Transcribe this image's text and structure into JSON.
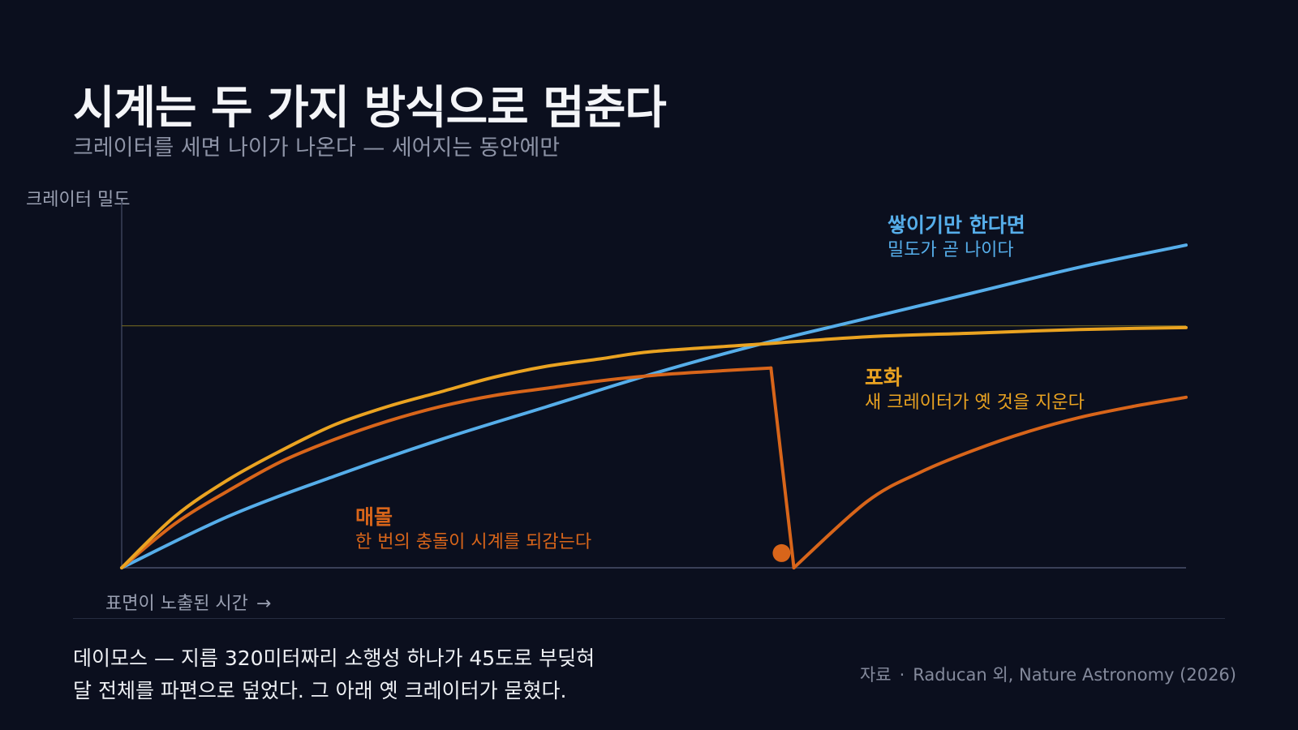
{
  "header": {
    "title": "시계는 두 가지 방식으로 멈춘다",
    "subtitle": "크레이터를 세면 나이가 나온다 — 세어지는 동안에만"
  },
  "chart_data": {
    "type": "line",
    "ylabel": "크레이터 밀도",
    "xlabel": "표면이 노출된 시간",
    "xlabel_arrow": "→",
    "xlim": [
      0,
      100
    ],
    "ylim": [
      0,
      100
    ],
    "saturation_level": 66,
    "series": [
      {
        "key": "accumulate",
        "color": "#56aeea",
        "x": [
          0,
          10,
          20,
          30,
          40,
          50,
          60,
          70,
          80,
          90,
          100
        ],
        "y": [
          0,
          14,
          25,
          35,
          44,
          53,
          61,
          68,
          75,
          82,
          88
        ]
      },
      {
        "key": "saturation",
        "color": "#eaa321",
        "x": [
          0,
          5,
          10,
          15,
          20,
          25,
          30,
          35,
          40,
          45,
          50,
          60,
          70,
          80,
          90,
          100
        ],
        "y": [
          0,
          14,
          24,
          32,
          39,
          44,
          48,
          52,
          55,
          57,
          59,
          61,
          63,
          64,
          65,
          65.5
        ]
      },
      {
        "key": "burial",
        "color": "#d8651a",
        "x": [
          0,
          5,
          10,
          15,
          20,
          25,
          30,
          35,
          40,
          45,
          50,
          55,
          61,
          63,
          70,
          75,
          80,
          85,
          90,
          95,
          100
        ],
        "y": [
          0,
          12,
          21,
          29,
          35,
          40,
          44,
          47,
          49,
          51,
          52.5,
          53.5,
          54.5,
          4,
          18,
          26,
          32,
          37,
          41,
          44,
          46.5
        ]
      }
    ],
    "reset_point": {
      "x": 62,
      "y": 4
    },
    "annotations": {
      "accumulate": {
        "title": "쌓이기만 한다면",
        "text": "밀도가 곧 나이다"
      },
      "saturation": {
        "title": "포화",
        "text": "새 크레이터가 옛 것을 지운다"
      },
      "burial": {
        "title": "매몰",
        "text": "한 번의 충돌이 시계를 되감는다"
      }
    }
  },
  "footer": {
    "caption_line1": "데이모스 — 지름 320미터짜리 소행성 하나가 45도로 부딪혀",
    "caption_line2": "달 전체를 파편으로 덮었다. 그 아래 옛 크레이터가 묻혔다.",
    "source_label": "자료",
    "source_dot": "·",
    "source_text": "Raducan 외, Nature Astronomy (2026)"
  },
  "colors": {
    "background": "#0b0f1e",
    "axis": "#3a4058",
    "saturation_line": "#6f6420"
  }
}
